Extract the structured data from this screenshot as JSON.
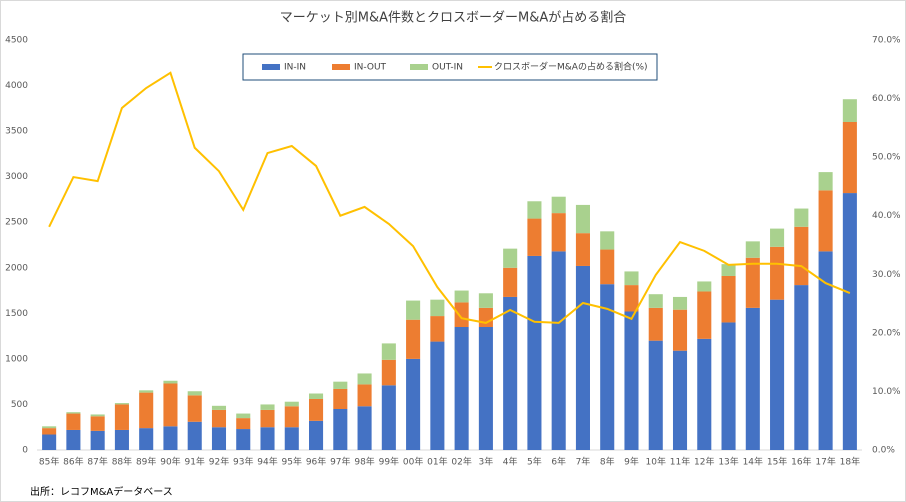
{
  "chart_data": {
    "type": "bar",
    "title": "マーケット別M&A件数とクロスボーダーM&Aが占める割合",
    "source": "出所：レコフM&Aデータベース",
    "categories": [
      "85年",
      "86年",
      "87年",
      "88年",
      "89年",
      "90年",
      "91年",
      "92年",
      "93年",
      "94年",
      "95年",
      "96年",
      "97年",
      "98年",
      "99年",
      "00年",
      "01年",
      "02年",
      "3年",
      "4年",
      "5年",
      "6年",
      "7年",
      "8年",
      "9年",
      "10年",
      "11年",
      "12年",
      "13年",
      "14年",
      "15年",
      "16年",
      "17年",
      "18年"
    ],
    "series": [
      {
        "name": "IN-IN",
        "type": "bar",
        "color": "#4472c4",
        "values": [
          170,
          220,
          210,
          220,
          240,
          260,
          310,
          250,
          230,
          250,
          250,
          320,
          450,
          480,
          710,
          1000,
          1190,
          1350,
          1350,
          1680,
          2130,
          2180,
          2020,
          1820,
          1520,
          1200,
          1090,
          1220,
          1400,
          1560,
          1650,
          1810,
          2180,
          2820
        ]
      },
      {
        "name": "IN-OUT",
        "type": "bar",
        "color": "#ed7d31",
        "values": [
          70,
          180,
          160,
          280,
          390,
          470,
          290,
          190,
          120,
          190,
          230,
          240,
          220,
          240,
          280,
          430,
          280,
          270,
          210,
          320,
          410,
          420,
          360,
          380,
          290,
          360,
          450,
          520,
          510,
          550,
          580,
          640,
          670,
          780
        ]
      },
      {
        "name": "OUT-IN",
        "type": "bar",
        "color": "#a9d18e",
        "values": [
          20,
          15,
          20,
          15,
          25,
          30,
          45,
          45,
          50,
          60,
          50,
          60,
          80,
          120,
          180,
          210,
          180,
          130,
          160,
          210,
          190,
          180,
          310,
          200,
          150,
          150,
          140,
          110,
          130,
          180,
          200,
          200,
          200,
          250
        ]
      },
      {
        "name": "クロスボーダーM&Aの占める割合(%)",
        "type": "line",
        "axis": "y2",
        "color": "#ffc000",
        "values": [
          38.1,
          46.6,
          45.9,
          58.4,
          61.8,
          64.4,
          51.6,
          47.6,
          41.0,
          50.7,
          51.9,
          48.5,
          40.0,
          41.5,
          38.6,
          34.8,
          27.8,
          22.5,
          21.7,
          23.9,
          21.9,
          21.7,
          25.1,
          24.1,
          22.4,
          29.9,
          35.5,
          34.0,
          31.6,
          31.8,
          31.8,
          31.4,
          28.5,
          26.8
        ]
      }
    ],
    "ylim": [
      0,
      4500
    ],
    "yticks": [
      0,
      500,
      1000,
      1500,
      2000,
      2500,
      3000,
      3500,
      4000,
      4500
    ],
    "y2lim": [
      0,
      70
    ],
    "y2ticks": [
      {
        "value": 0,
        "label": "0.0%"
      },
      {
        "value": 10,
        "label": "10.0%"
      },
      {
        "value": 20,
        "label": "20.0%"
      },
      {
        "value": 30,
        "label": "30.0%"
      },
      {
        "value": 40,
        "label": "40.0%"
      },
      {
        "value": 50,
        "label": "50.0%"
      },
      {
        "value": 60,
        "label": "60.0%"
      },
      {
        "value": 70,
        "label": "70.0%"
      }
    ],
    "grid": false,
    "legend": "top"
  }
}
